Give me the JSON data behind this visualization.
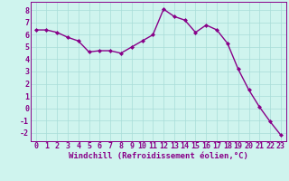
{
  "x": [
    0,
    1,
    2,
    3,
    4,
    5,
    6,
    7,
    8,
    9,
    10,
    11,
    12,
    13,
    14,
    15,
    16,
    17,
    18,
    19,
    20,
    21,
    22,
    23
  ],
  "y": [
    6.4,
    6.4,
    6.2,
    5.8,
    5.5,
    4.6,
    4.7,
    4.7,
    4.5,
    5.0,
    5.5,
    6.0,
    8.1,
    7.5,
    7.2,
    6.2,
    6.8,
    6.4,
    5.3,
    3.2,
    1.5,
    0.1,
    -1.1,
    -2.2
  ],
  "line_color": "#880088",
  "marker": "D",
  "marker_size": 2.0,
  "bg_color": "#cff4ee",
  "grid_color": "#a8ddd8",
  "xlabel": "Windchill (Refroidissement éolien,°C)",
  "xlim": [
    -0.5,
    23.5
  ],
  "ylim": [
    -2.7,
    8.7
  ],
  "xticks": [
    0,
    1,
    2,
    3,
    4,
    5,
    6,
    7,
    8,
    9,
    10,
    11,
    12,
    13,
    14,
    15,
    16,
    17,
    18,
    19,
    20,
    21,
    22,
    23
  ],
  "yticks": [
    -2,
    -1,
    0,
    1,
    2,
    3,
    4,
    5,
    6,
    7,
    8
  ],
  "xlabel_fontsize": 6.5,
  "tick_fontsize": 6.0,
  "line_width": 1.0,
  "axes_color": "#880088",
  "spine_color": "#880088"
}
